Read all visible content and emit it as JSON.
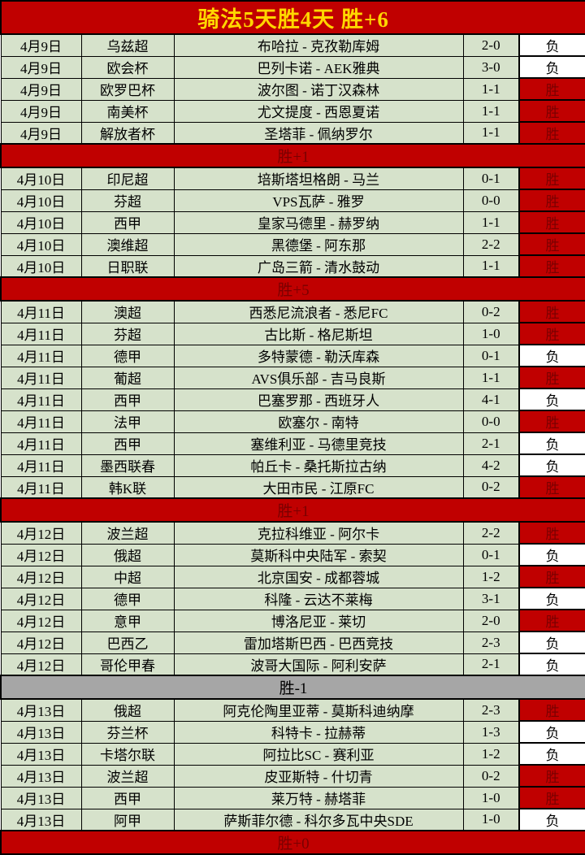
{
  "header": {
    "title": "骑法5天胜4天 胜+6"
  },
  "colors": {
    "red": "#C00000",
    "dark_red_text": "#7A0000",
    "row_green": "#D6E2CB",
    "separator_gray": "#A6A6A6",
    "title_yellow": "#FFD700",
    "border_black": "#000000",
    "loss_cell_white": "#FFFFFF"
  },
  "result_labels": {
    "win": "胜",
    "loss": "负"
  },
  "rows": [
    {
      "type": "match",
      "date": "4月9日",
      "league": "乌兹超",
      "match": "布哈拉 - 克孜勒库姆",
      "score": "2-0",
      "result": "负",
      "win": false
    },
    {
      "type": "match",
      "date": "4月9日",
      "league": "欧会杯",
      "match": "巴列卡诺 - AEK雅典",
      "score": "3-0",
      "result": "负",
      "win": false
    },
    {
      "type": "match",
      "date": "4月9日",
      "league": "欧罗巴杯",
      "match": "波尔图 - 诺丁汉森林",
      "score": "1-1",
      "result": "胜",
      "win": true
    },
    {
      "type": "match",
      "date": "4月9日",
      "league": "南美杯",
      "match": "尤文提度 - 西恩夏诺",
      "score": "1-1",
      "result": "胜",
      "win": true
    },
    {
      "type": "match",
      "date": "4月9日",
      "league": "解放者杯",
      "match": "圣塔菲 - 佩纳罗尔",
      "score": "1-1",
      "result": "胜",
      "win": true
    },
    {
      "type": "separator",
      "label": "胜+1",
      "theme": "red"
    },
    {
      "type": "match",
      "date": "4月10日",
      "league": "印尼超",
      "match": "培斯塔坦格朗 - 马兰",
      "score": "0-1",
      "result": "胜",
      "win": true
    },
    {
      "type": "match",
      "date": "4月10日",
      "league": "芬超",
      "match": "VPS瓦萨 - 雅罗",
      "score": "0-0",
      "result": "胜",
      "win": true
    },
    {
      "type": "match",
      "date": "4月10日",
      "league": "西甲",
      "match": "皇家马德里 - 赫罗纳",
      "score": "1-1",
      "result": "胜",
      "win": true
    },
    {
      "type": "match",
      "date": "4月10日",
      "league": "澳维超",
      "match": "黑德堡 - 阿东那",
      "score": "2-2",
      "result": "胜",
      "win": true
    },
    {
      "type": "match",
      "date": "4月10日",
      "league": "日职联",
      "match": "广岛三箭 - 清水鼓动",
      "score": "1-1",
      "result": "胜",
      "win": true
    },
    {
      "type": "separator",
      "label": "胜+5",
      "theme": "red"
    },
    {
      "type": "match",
      "date": "4月11日",
      "league": "澳超",
      "match": "西悉尼流浪者 - 悉尼FC",
      "score": "0-2",
      "result": "胜",
      "win": true
    },
    {
      "type": "match",
      "date": "4月11日",
      "league": "芬超",
      "match": "古比斯 - 格尼斯坦",
      "score": "1-0",
      "result": "胜",
      "win": true
    },
    {
      "type": "match",
      "date": "4月11日",
      "league": "德甲",
      "match": "多特蒙德 - 勒沃库森",
      "score": "0-1",
      "result": "负",
      "win": false
    },
    {
      "type": "match",
      "date": "4月11日",
      "league": "葡超",
      "match": "AVS俱乐部 - 吉马良斯",
      "score": "1-1",
      "result": "胜",
      "win": true
    },
    {
      "type": "match",
      "date": "4月11日",
      "league": "西甲",
      "match": "巴塞罗那 - 西班牙人",
      "score": "4-1",
      "result": "负",
      "win": false
    },
    {
      "type": "match",
      "date": "4月11日",
      "league": "法甲",
      "match": "欧塞尔 - 南特",
      "score": "0-0",
      "result": "胜",
      "win": true
    },
    {
      "type": "match",
      "date": "4月11日",
      "league": "西甲",
      "match": "塞维利亚 - 马德里竞技",
      "score": "2-1",
      "result": "负",
      "win": false
    },
    {
      "type": "match",
      "date": "4月11日",
      "league": "墨西联春",
      "match": "帕丘卡 - 桑托斯拉古纳",
      "score": "4-2",
      "result": "负",
      "win": false
    },
    {
      "type": "match",
      "date": "4月11日",
      "league": "韩K联",
      "match": "大田市民 - 江原FC",
      "score": "0-2",
      "result": "胜",
      "win": true
    },
    {
      "type": "separator",
      "label": "胜+1",
      "theme": "red"
    },
    {
      "type": "match",
      "date": "4月12日",
      "league": "波兰超",
      "match": "克拉科维亚 - 阿尔卡",
      "score": "2-2",
      "result": "胜",
      "win": true
    },
    {
      "type": "match",
      "date": "4月12日",
      "league": "俄超",
      "match": "莫斯科中央陆军 - 索契",
      "score": "0-1",
      "result": "负",
      "win": false
    },
    {
      "type": "match",
      "date": "4月12日",
      "league": "中超",
      "match": "北京国安 - 成都蓉城",
      "score": "1-2",
      "result": "胜",
      "win": true
    },
    {
      "type": "match",
      "date": "4月12日",
      "league": "德甲",
      "match": "科隆 - 云达不莱梅",
      "score": "3-1",
      "result": "负",
      "win": false
    },
    {
      "type": "match",
      "date": "4月12日",
      "league": "意甲",
      "match": "博洛尼亚 - 莱切",
      "score": "2-0",
      "result": "胜",
      "win": true
    },
    {
      "type": "match",
      "date": "4月12日",
      "league": "巴西乙",
      "match": "雷加塔斯巴西 - 巴西竞技",
      "score": "2-3",
      "result": "负",
      "win": false
    },
    {
      "type": "match",
      "date": "4月12日",
      "league": "哥伦甲春",
      "match": "波哥大国际 - 阿利安萨",
      "score": "2-1",
      "result": "负",
      "win": false
    },
    {
      "type": "separator",
      "label": "胜-1",
      "theme": "gray"
    },
    {
      "type": "match",
      "date": "4月13日",
      "league": "俄超",
      "match": "阿克伦陶里亚蒂 - 莫斯科迪纳摩",
      "score": "2-3",
      "result": "胜",
      "win": true
    },
    {
      "type": "match",
      "date": "4月13日",
      "league": "芬兰杯",
      "match": "科特卡 - 拉赫蒂",
      "score": "1-3",
      "result": "负",
      "win": false
    },
    {
      "type": "match",
      "date": "4月13日",
      "league": "卡塔尔联",
      "match": "阿拉比SC - 赛利亚",
      "score": "1-2",
      "result": "负",
      "win": false
    },
    {
      "type": "match",
      "date": "4月13日",
      "league": "波兰超",
      "match": "皮亚斯特 - 什切青",
      "score": "0-2",
      "result": "胜",
      "win": true
    },
    {
      "type": "match",
      "date": "4月13日",
      "league": "西甲",
      "match": "莱万特 - 赫塔菲",
      "score": "1-0",
      "result": "胜",
      "win": true
    },
    {
      "type": "match",
      "date": "4月13日",
      "league": "阿甲",
      "match": "萨斯菲尔德 - 科尔多瓦中央SDE",
      "score": "1-0",
      "result": "负",
      "win": false
    },
    {
      "type": "separator",
      "label": "胜+0",
      "theme": "red"
    }
  ]
}
